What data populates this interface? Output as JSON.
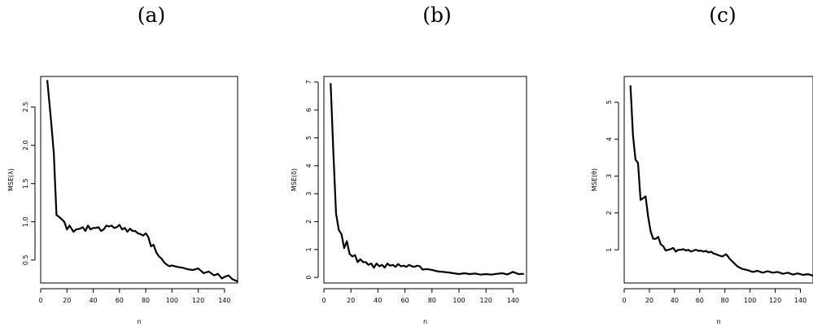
{
  "panels": [
    {
      "title": "(a)"
    },
    {
      "title": "(b)"
    },
    {
      "title": "(c)"
    }
  ],
  "chart_data": [
    {
      "type": "line",
      "title": "(a)",
      "xlabel": "n",
      "ylabel": "MSE(λ)",
      "xlim": [
        0,
        150
      ],
      "ylim": [
        0.2,
        2.9
      ],
      "xticks": [
        0,
        20,
        40,
        60,
        80,
        100,
        120,
        140
      ],
      "yticks": [
        0.5,
        1.0,
        1.5,
        2.0,
        2.5
      ],
      "ytick_labels": [
        "0.5",
        "1.0",
        "1.5",
        "2.0",
        "2.5"
      ],
      "grid": false,
      "series": [
        {
          "x": [
            5,
            8,
            10,
            12,
            15,
            18,
            20,
            22,
            25,
            27,
            30,
            32,
            34,
            36,
            38,
            40,
            42,
            44,
            46,
            48,
            50,
            52,
            54,
            56,
            58,
            60,
            62,
            64,
            66,
            68,
            70,
            72,
            74,
            76,
            78,
            80,
            82,
            84,
            86,
            88,
            90,
            92,
            94,
            96,
            98,
            100,
            104,
            108,
            112,
            116,
            120,
            124,
            128,
            132,
            135,
            138,
            140,
            143,
            146,
            150
          ],
          "y": [
            2.85,
            2.3,
            1.9,
            1.09,
            1.05,
            1.0,
            0.9,
            0.95,
            0.87,
            0.9,
            0.91,
            0.93,
            0.88,
            0.95,
            0.9,
            0.92,
            0.92,
            0.93,
            0.88,
            0.9,
            0.95,
            0.94,
            0.95,
            0.92,
            0.93,
            0.96,
            0.9,
            0.92,
            0.87,
            0.91,
            0.88,
            0.88,
            0.85,
            0.84,
            0.82,
            0.85,
            0.8,
            0.68,
            0.7,
            0.6,
            0.55,
            0.52,
            0.47,
            0.44,
            0.42,
            0.43,
            0.41,
            0.4,
            0.38,
            0.37,
            0.39,
            0.33,
            0.35,
            0.3,
            0.32,
            0.26,
            0.28,
            0.3,
            0.25,
            0.22
          ]
        }
      ]
    },
    {
      "type": "line",
      "title": "(b)",
      "xlabel": "n",
      "ylabel": "MSE(δ)",
      "xlim": [
        0,
        150
      ],
      "ylim": [
        -0.2,
        7.2
      ],
      "xticks": [
        0,
        20,
        40,
        60,
        80,
        100,
        120,
        140
      ],
      "yticks": [
        0,
        1,
        2,
        3,
        4,
        5,
        6,
        7
      ],
      "ytick_labels": [
        "0",
        "1",
        "2",
        "3",
        "4",
        "5",
        "6",
        "7"
      ],
      "grid": false,
      "series": [
        {
          "x": [
            5,
            7,
            9,
            11,
            13,
            15,
            17,
            19,
            21,
            23,
            25,
            27,
            29,
            31,
            33,
            35,
            37,
            39,
            41,
            43,
            45,
            47,
            49,
            51,
            53,
            55,
            57,
            59,
            61,
            63,
            65,
            67,
            69,
            71,
            73,
            76,
            80,
            84,
            88,
            92,
            96,
            100,
            104,
            108,
            112,
            116,
            120,
            124,
            128,
            132,
            136,
            140,
            144,
            148
          ],
          "y": [
            6.95,
            4.5,
            2.3,
            1.7,
            1.55,
            1.05,
            1.3,
            0.85,
            0.75,
            0.8,
            0.55,
            0.65,
            0.55,
            0.55,
            0.45,
            0.5,
            0.35,
            0.5,
            0.4,
            0.45,
            0.35,
            0.5,
            0.42,
            0.45,
            0.38,
            0.48,
            0.4,
            0.42,
            0.38,
            0.45,
            0.4,
            0.38,
            0.42,
            0.4,
            0.28,
            0.3,
            0.27,
            0.22,
            0.2,
            0.18,
            0.15,
            0.12,
            0.15,
            0.12,
            0.14,
            0.1,
            0.12,
            0.1,
            0.13,
            0.15,
            0.11,
            0.2,
            0.12,
            0.13
          ]
        }
      ]
    },
    {
      "type": "line",
      "title": "(c)",
      "xlabel": "n",
      "ylabel": "MSE(θ)",
      "xlim": [
        0,
        150
      ],
      "ylim": [
        0.1,
        5.7
      ],
      "xticks": [
        0,
        20,
        40,
        60,
        80,
        100,
        120,
        140
      ],
      "yticks": [
        1,
        2,
        3,
        4,
        5
      ],
      "ytick_labels": [
        "1",
        "2",
        "3",
        "4",
        "5"
      ],
      "grid": false,
      "series": [
        {
          "x": [
            5,
            7,
            9,
            11,
            13,
            15,
            17,
            19,
            21,
            23,
            25,
            27,
            29,
            31,
            33,
            35,
            37,
            39,
            41,
            43,
            45,
            47,
            49,
            51,
            53,
            55,
            57,
            59,
            61,
            63,
            65,
            67,
            69,
            71,
            73,
            75,
            78,
            81,
            84,
            87,
            90,
            94,
            98,
            102,
            106,
            110,
            114,
            118,
            122,
            126,
            130,
            134,
            138,
            142,
            146,
            150
          ],
          "y": [
            5.45,
            4.1,
            3.45,
            3.35,
            2.35,
            2.4,
            2.45,
            1.9,
            1.5,
            1.3,
            1.3,
            1.35,
            1.15,
            1.1,
            0.98,
            1.0,
            1.02,
            1.05,
            0.95,
            1.0,
            1.0,
            1.02,
            0.98,
            1.0,
            0.95,
            0.98,
            1.0,
            0.97,
            0.98,
            0.95,
            0.97,
            0.93,
            0.95,
            0.9,
            0.88,
            0.85,
            0.82,
            0.88,
            0.75,
            0.65,
            0.55,
            0.48,
            0.45,
            0.4,
            0.43,
            0.38,
            0.42,
            0.38,
            0.4,
            0.35,
            0.38,
            0.33,
            0.36,
            0.32,
            0.34,
            0.3
          ]
        }
      ]
    }
  ]
}
